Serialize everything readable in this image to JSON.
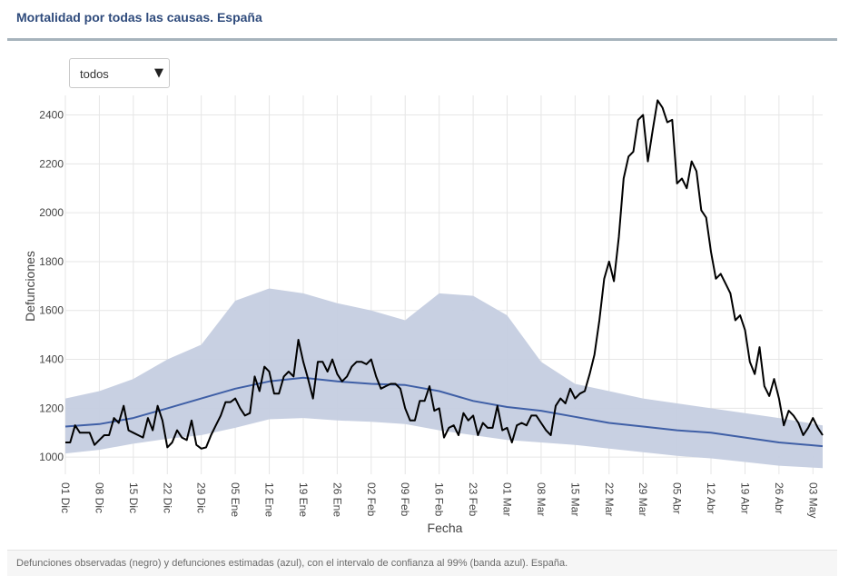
{
  "header": {
    "title": "Mortalidad por todas las causas. España"
  },
  "filter": {
    "selected": "todos"
  },
  "icons": {
    "dropdown": "caret-down-icon"
  },
  "footnote": "Defunciones observadas (negro) y defunciones estimadas (azul), con el intervalo de confianza al 99% (banda azul). España.",
  "chart_data": {
    "type": "line",
    "xlabel": "Fecha",
    "ylabel": "Defunciones",
    "ylim": [
      930,
      2480
    ],
    "yticks": [
      1000,
      1200,
      1400,
      1600,
      1800,
      2000,
      2200,
      2400
    ],
    "x_range": [
      "2019-12-01",
      "2020-05-05"
    ],
    "xtick_labels": [
      "01 Dic",
      "08 Dic",
      "15 Dic",
      "22 Dic",
      "29 Dic",
      "05 Ene",
      "12 Ene",
      "19 Ene",
      "26 Ene",
      "02 Feb",
      "09 Feb",
      "16 Feb",
      "23 Feb",
      "01 Mar",
      "08 Mar",
      "15 Mar",
      "22 Mar",
      "29 Mar",
      "05 Abr",
      "12 Abr",
      "19 Abr",
      "26 Abr",
      "03 May"
    ],
    "xtick_dates": [
      "2019-12-01",
      "2019-12-08",
      "2019-12-15",
      "2019-12-22",
      "2019-12-29",
      "2020-01-05",
      "2020-01-12",
      "2020-01-19",
      "2020-01-26",
      "2020-02-02",
      "2020-02-09",
      "2020-02-16",
      "2020-02-23",
      "2020-03-01",
      "2020-03-08",
      "2020-03-15",
      "2020-03-22",
      "2020-03-29",
      "2020-04-05",
      "2020-04-12",
      "2020-04-19",
      "2020-04-26",
      "2020-05-03"
    ],
    "grid": true,
    "colors": {
      "observed": "#000000",
      "estimated": "#3f5fa6",
      "band": "#c5cde0"
    },
    "series": [
      {
        "role": "observed",
        "points": [
          [
            "2019-12-01",
            1060
          ],
          [
            "2019-12-02",
            1060
          ],
          [
            "2019-12-03",
            1130
          ],
          [
            "2019-12-04",
            1100
          ],
          [
            "2019-12-05",
            1100
          ],
          [
            "2019-12-06",
            1100
          ],
          [
            "2019-12-07",
            1050
          ],
          [
            "2019-12-08",
            1070
          ],
          [
            "2019-12-09",
            1090
          ],
          [
            "2019-12-10",
            1090
          ],
          [
            "2019-12-11",
            1160
          ],
          [
            "2019-12-12",
            1140
          ],
          [
            "2019-12-13",
            1210
          ],
          [
            "2019-12-14",
            1110
          ],
          [
            "2019-12-15",
            1100
          ],
          [
            "2019-12-16",
            1090
          ],
          [
            "2019-12-17",
            1080
          ],
          [
            "2019-12-18",
            1160
          ],
          [
            "2019-12-19",
            1110
          ],
          [
            "2019-12-20",
            1210
          ],
          [
            "2019-12-21",
            1150
          ],
          [
            "2019-12-22",
            1040
          ],
          [
            "2019-12-23",
            1060
          ],
          [
            "2019-12-24",
            1110
          ],
          [
            "2019-12-25",
            1080
          ],
          [
            "2019-12-26",
            1070
          ],
          [
            "2019-12-27",
            1150
          ],
          [
            "2019-12-28",
            1050
          ],
          [
            "2019-12-29",
            1035
          ],
          [
            "2019-12-30",
            1040
          ],
          [
            "2019-12-31",
            1090
          ],
          [
            "2020-01-01",
            1130
          ],
          [
            "2020-01-02",
            1170
          ],
          [
            "2020-01-03",
            1225
          ],
          [
            "2020-01-04",
            1225
          ],
          [
            "2020-01-05",
            1240
          ],
          [
            "2020-01-06",
            1200
          ],
          [
            "2020-01-07",
            1170
          ],
          [
            "2020-01-08",
            1180
          ],
          [
            "2020-01-09",
            1330
          ],
          [
            "2020-01-10",
            1270
          ],
          [
            "2020-01-11",
            1370
          ],
          [
            "2020-01-12",
            1350
          ],
          [
            "2020-01-13",
            1260
          ],
          [
            "2020-01-14",
            1260
          ],
          [
            "2020-01-15",
            1330
          ],
          [
            "2020-01-16",
            1350
          ],
          [
            "2020-01-17",
            1330
          ],
          [
            "2020-01-18",
            1480
          ],
          [
            "2020-01-19",
            1390
          ],
          [
            "2020-01-20",
            1320
          ],
          [
            "2020-01-21",
            1240
          ],
          [
            "2020-01-22",
            1390
          ],
          [
            "2020-01-23",
            1390
          ],
          [
            "2020-01-24",
            1350
          ],
          [
            "2020-01-25",
            1400
          ],
          [
            "2020-01-26",
            1340
          ],
          [
            "2020-01-27",
            1310
          ],
          [
            "2020-01-28",
            1330
          ],
          [
            "2020-01-29",
            1370
          ],
          [
            "2020-01-30",
            1390
          ],
          [
            "2020-01-31",
            1390
          ],
          [
            "2020-02-01",
            1380
          ],
          [
            "2020-02-02",
            1400
          ],
          [
            "2020-02-03",
            1330
          ],
          [
            "2020-02-04",
            1280
          ],
          [
            "2020-02-05",
            1290
          ],
          [
            "2020-02-06",
            1300
          ],
          [
            "2020-02-07",
            1300
          ],
          [
            "2020-02-08",
            1280
          ],
          [
            "2020-02-09",
            1200
          ],
          [
            "2020-02-10",
            1150
          ],
          [
            "2020-02-11",
            1150
          ],
          [
            "2020-02-12",
            1230
          ],
          [
            "2020-02-13",
            1230
          ],
          [
            "2020-02-14",
            1290
          ],
          [
            "2020-02-15",
            1190
          ],
          [
            "2020-02-16",
            1200
          ],
          [
            "2020-02-17",
            1080
          ],
          [
            "2020-02-18",
            1120
          ],
          [
            "2020-02-19",
            1130
          ],
          [
            "2020-02-20",
            1090
          ],
          [
            "2020-02-21",
            1180
          ],
          [
            "2020-02-22",
            1150
          ],
          [
            "2020-02-23",
            1170
          ],
          [
            "2020-02-24",
            1090
          ],
          [
            "2020-02-25",
            1140
          ],
          [
            "2020-02-26",
            1120
          ],
          [
            "2020-02-27",
            1120
          ],
          [
            "2020-02-28",
            1210
          ],
          [
            "2020-02-29",
            1110
          ],
          [
            "2020-03-01",
            1120
          ],
          [
            "2020-03-02",
            1060
          ],
          [
            "2020-03-03",
            1130
          ],
          [
            "2020-03-04",
            1140
          ],
          [
            "2020-03-05",
            1130
          ],
          [
            "2020-03-06",
            1170
          ],
          [
            "2020-03-07",
            1170
          ],
          [
            "2020-03-08",
            1140
          ],
          [
            "2020-03-09",
            1110
          ],
          [
            "2020-03-10",
            1090
          ],
          [
            "2020-03-11",
            1210
          ],
          [
            "2020-03-12",
            1240
          ],
          [
            "2020-03-13",
            1220
          ],
          [
            "2020-03-14",
            1280
          ],
          [
            "2020-03-15",
            1240
          ],
          [
            "2020-03-16",
            1260
          ],
          [
            "2020-03-17",
            1270
          ],
          [
            "2020-03-18",
            1340
          ],
          [
            "2020-03-19",
            1420
          ],
          [
            "2020-03-20",
            1560
          ],
          [
            "2020-03-21",
            1730
          ],
          [
            "2020-03-22",
            1800
          ],
          [
            "2020-03-23",
            1720
          ],
          [
            "2020-03-24",
            1900
          ],
          [
            "2020-03-25",
            2140
          ],
          [
            "2020-03-26",
            2230
          ],
          [
            "2020-03-27",
            2250
          ],
          [
            "2020-03-28",
            2380
          ],
          [
            "2020-03-29",
            2400
          ],
          [
            "2020-03-30",
            2210
          ],
          [
            "2020-03-31",
            2340
          ],
          [
            "2020-04-01",
            2460
          ],
          [
            "2020-04-02",
            2430
          ],
          [
            "2020-04-03",
            2370
          ],
          [
            "2020-04-04",
            2380
          ],
          [
            "2020-04-05",
            2120
          ],
          [
            "2020-04-06",
            2140
          ],
          [
            "2020-04-07",
            2100
          ],
          [
            "2020-04-08",
            2210
          ],
          [
            "2020-04-09",
            2170
          ],
          [
            "2020-04-10",
            2010
          ],
          [
            "2020-04-11",
            1980
          ],
          [
            "2020-04-12",
            1840
          ],
          [
            "2020-04-13",
            1730
          ],
          [
            "2020-04-14",
            1750
          ],
          [
            "2020-04-15",
            1710
          ],
          [
            "2020-04-16",
            1670
          ],
          [
            "2020-04-17",
            1560
          ],
          [
            "2020-04-18",
            1580
          ],
          [
            "2020-04-19",
            1520
          ],
          [
            "2020-04-20",
            1390
          ],
          [
            "2020-04-21",
            1340
          ],
          [
            "2020-04-22",
            1450
          ],
          [
            "2020-04-23",
            1290
          ],
          [
            "2020-04-24",
            1250
          ],
          [
            "2020-04-25",
            1320
          ],
          [
            "2020-04-26",
            1240
          ],
          [
            "2020-04-27",
            1130
          ],
          [
            "2020-04-28",
            1190
          ],
          [
            "2020-04-29",
            1170
          ],
          [
            "2020-04-30",
            1140
          ],
          [
            "2020-05-01",
            1090
          ],
          [
            "2020-05-02",
            1120
          ],
          [
            "2020-05-03",
            1160
          ],
          [
            "2020-05-04",
            1120
          ],
          [
            "2020-05-05",
            1090
          ]
        ]
      },
      {
        "role": "estimated",
        "points": [
          [
            "2019-12-01",
            1125
          ],
          [
            "2019-12-08",
            1135
          ],
          [
            "2019-12-15",
            1160
          ],
          [
            "2019-12-22",
            1200
          ],
          [
            "2019-12-29",
            1240
          ],
          [
            "2020-01-05",
            1280
          ],
          [
            "2020-01-12",
            1310
          ],
          [
            "2020-01-19",
            1325
          ],
          [
            "2020-01-26",
            1310
          ],
          [
            "2020-02-02",
            1300
          ],
          [
            "2020-02-09",
            1295
          ],
          [
            "2020-02-16",
            1270
          ],
          [
            "2020-02-23",
            1230
          ],
          [
            "2020-03-01",
            1205
          ],
          [
            "2020-03-08",
            1190
          ],
          [
            "2020-03-15",
            1165
          ],
          [
            "2020-03-22",
            1140
          ],
          [
            "2020-03-29",
            1125
          ],
          [
            "2020-04-05",
            1110
          ],
          [
            "2020-04-12",
            1100
          ],
          [
            "2020-04-19",
            1080
          ],
          [
            "2020-04-26",
            1060
          ],
          [
            "2020-05-05",
            1045
          ]
        ]
      }
    ],
    "band": {
      "role": "ci99",
      "upper": [
        [
          "2019-12-01",
          1240
        ],
        [
          "2019-12-08",
          1270
        ],
        [
          "2019-12-15",
          1320
        ],
        [
          "2019-12-22",
          1400
        ],
        [
          "2019-12-29",
          1460
        ],
        [
          "2020-01-05",
          1640
        ],
        [
          "2020-01-12",
          1690
        ],
        [
          "2020-01-19",
          1670
        ],
        [
          "2020-01-26",
          1630
        ],
        [
          "2020-02-02",
          1600
        ],
        [
          "2020-02-09",
          1560
        ],
        [
          "2020-02-16",
          1670
        ],
        [
          "2020-02-23",
          1660
        ],
        [
          "2020-03-01",
          1580
        ],
        [
          "2020-03-08",
          1390
        ],
        [
          "2020-03-15",
          1300
        ],
        [
          "2020-03-22",
          1270
        ],
        [
          "2020-03-29",
          1240
        ],
        [
          "2020-04-05",
          1220
        ],
        [
          "2020-04-12",
          1200
        ],
        [
          "2020-04-19",
          1180
        ],
        [
          "2020-04-26",
          1160
        ],
        [
          "2020-05-05",
          1130
        ]
      ],
      "lower": [
        [
          "2019-12-01",
          1015
        ],
        [
          "2019-12-08",
          1030
        ],
        [
          "2019-12-15",
          1055
        ],
        [
          "2019-12-22",
          1075
        ],
        [
          "2019-12-29",
          1090
        ],
        [
          "2020-01-05",
          1120
        ],
        [
          "2020-01-12",
          1155
        ],
        [
          "2020-01-19",
          1160
        ],
        [
          "2020-01-26",
          1150
        ],
        [
          "2020-02-02",
          1145
        ],
        [
          "2020-02-09",
          1135
        ],
        [
          "2020-02-16",
          1110
        ],
        [
          "2020-02-23",
          1090
        ],
        [
          "2020-03-01",
          1070
        ],
        [
          "2020-03-08",
          1060
        ],
        [
          "2020-03-15",
          1050
        ],
        [
          "2020-03-22",
          1035
        ],
        [
          "2020-03-29",
          1020
        ],
        [
          "2020-04-05",
          1005
        ],
        [
          "2020-04-12",
          995
        ],
        [
          "2020-04-19",
          980
        ],
        [
          "2020-04-26",
          965
        ],
        [
          "2020-05-05",
          955
        ]
      ]
    }
  }
}
